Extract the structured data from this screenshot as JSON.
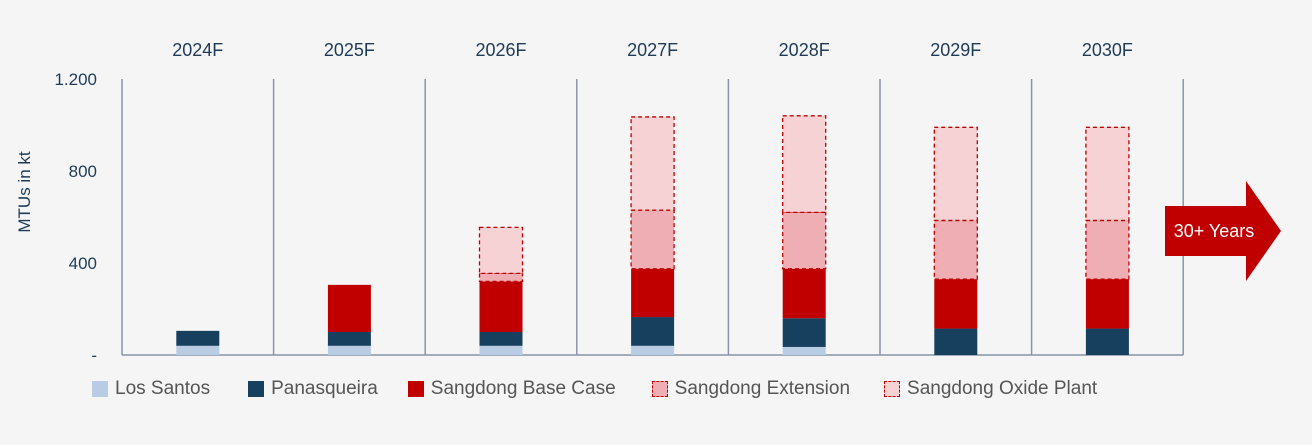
{
  "chart_data": {
    "type": "bar",
    "stacked": true,
    "categories": [
      "2024F",
      "2025F",
      "2026F",
      "2027F",
      "2028F",
      "2029F",
      "2030F"
    ],
    "ylabel": "MTUs in kt",
    "ylim": [
      0,
      1200
    ],
    "yticks": [
      0,
      400,
      800,
      1200
    ],
    "ytick_labels": [
      "-",
      "400",
      "800",
      "1.200"
    ],
    "grid": false,
    "legend_position": "bottom",
    "series": [
      {
        "name": "Los Santos",
        "color": "#b8cce4",
        "dashed": false,
        "values": [
          40,
          40,
          40,
          40,
          35,
          0,
          0
        ]
      },
      {
        "name": "Panasqueira",
        "color": "#17405f",
        "dashed": false,
        "values": [
          65,
          60,
          60,
          125,
          125,
          115,
          115
        ]
      },
      {
        "name": "Sangdong Base Case",
        "color": "#c00000",
        "dashed": false,
        "values": [
          0,
          205,
          220,
          210,
          215,
          215,
          215
        ]
      },
      {
        "name": "Sangdong Extension",
        "color": "#efaeb3",
        "dashed": true,
        "values": [
          0,
          0,
          35,
          255,
          245,
          255,
          255
        ]
      },
      {
        "name": "Sangdong Oxide Plant",
        "color": "#f6d2d5",
        "dashed": true,
        "values": [
          0,
          0,
          200,
          405,
          420,
          405,
          405
        ]
      }
    ],
    "annotation": "30+ Years"
  }
}
